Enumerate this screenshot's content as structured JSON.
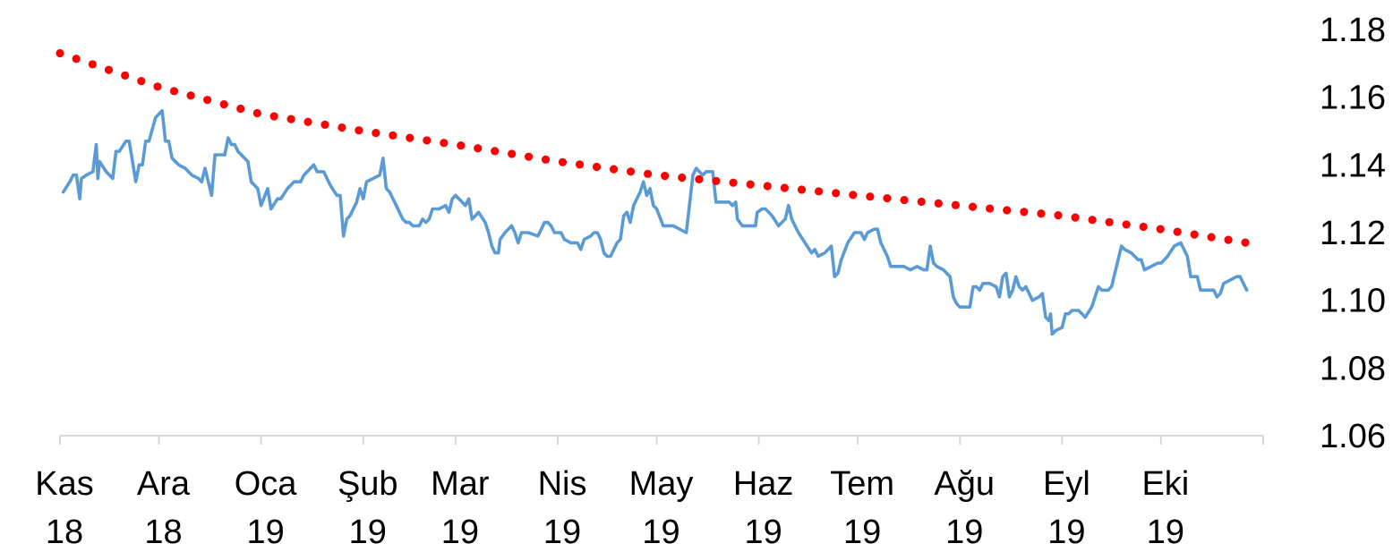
{
  "chart_data": {
    "type": "line",
    "title": "",
    "xlabel": "",
    "ylabel": "",
    "ylim": [
      1.06,
      1.18
    ],
    "yticks": [
      "1.06",
      "1.08",
      "1.10",
      "1.12",
      "1.14",
      "1.16",
      "1.18"
    ],
    "y_axis_side": "right",
    "grid": false,
    "legend": "none",
    "x_axis_months": [
      {
        "month": "Kas",
        "year": "18",
        "day": 0
      },
      {
        "month": "Ara",
        "year": "18",
        "day": 30
      },
      {
        "month": "Oca",
        "year": "19",
        "day": 61
      },
      {
        "month": "Şub",
        "year": "19",
        "day": 92
      },
      {
        "month": "Mar",
        "year": "19",
        "day": 120
      },
      {
        "month": "Nis",
        "year": "19",
        "day": 151
      },
      {
        "month": "May",
        "year": "19",
        "day": 181
      },
      {
        "month": "Haz",
        "year": "19",
        "day": 212
      },
      {
        "month": "Tem",
        "year": "19",
        "day": 242
      },
      {
        "month": "Ağu",
        "year": "19",
        "day": 273
      },
      {
        "month": "Eyl",
        "year": "19",
        "day": 304
      },
      {
        "month": "Eki",
        "year": "19",
        "day": 334
      }
    ],
    "x_end_day": 365,
    "series": [
      {
        "style": "solid",
        "color": "#5b9bd5",
        "points": [
          [
            1,
            1.132
          ],
          [
            3,
            1.135
          ],
          [
            4,
            1.137
          ],
          [
            5,
            1.137
          ],
          [
            6,
            1.13
          ],
          [
            6.5,
            1.136
          ],
          [
            8,
            1.137
          ],
          [
            10,
            1.138
          ],
          [
            11,
            1.146
          ],
          [
            11.5,
            1.136
          ],
          [
            12,
            1.141
          ],
          [
            14,
            1.138
          ],
          [
            16,
            1.136
          ],
          [
            17,
            1.144
          ],
          [
            18,
            1.144
          ],
          [
            20,
            1.147
          ],
          [
            21,
            1.147
          ],
          [
            23,
            1.135
          ],
          [
            24,
            1.14
          ],
          [
            25,
            1.14
          ],
          [
            26,
            1.147
          ],
          [
            27,
            1.147
          ],
          [
            29,
            1.154
          ],
          [
            31,
            1.156
          ],
          [
            32,
            1.147
          ],
          [
            33,
            1.147
          ],
          [
            34,
            1.142
          ],
          [
            36,
            1.14
          ],
          [
            38,
            1.139
          ],
          [
            40,
            1.137
          ],
          [
            42,
            1.136
          ],
          [
            43,
            1.135
          ],
          [
            44,
            1.139
          ],
          [
            46,
            1.131
          ],
          [
            47,
            1.143
          ],
          [
            48,
            1.143
          ],
          [
            50,
            1.143
          ],
          [
            51,
            1.148
          ],
          [
            52,
            1.146
          ],
          [
            53,
            1.146
          ],
          [
            54,
            1.144
          ],
          [
            56,
            1.142
          ],
          [
            57,
            1.141
          ],
          [
            58,
            1.135
          ],
          [
            59,
            1.134
          ],
          [
            60,
            1.133
          ],
          [
            61,
            1.128
          ],
          [
            63,
            1.133
          ],
          [
            64,
            1.127
          ],
          [
            66,
            1.13
          ],
          [
            67,
            1.13
          ],
          [
            69,
            1.133
          ],
          [
            71,
            1.135
          ],
          [
            73,
            1.135
          ],
          [
            74,
            1.137
          ],
          [
            76,
            1.139
          ],
          [
            77,
            1.14
          ],
          [
            78,
            1.138
          ],
          [
            80,
            1.138
          ],
          [
            82,
            1.134
          ],
          [
            84,
            1.131
          ],
          [
            85,
            1.131
          ],
          [
            86,
            1.119
          ],
          [
            87,
            1.124
          ],
          [
            88,
            1.125
          ],
          [
            90,
            1.129
          ],
          [
            91,
            1.133
          ],
          [
            92,
            1.13
          ],
          [
            93,
            1.135
          ],
          [
            95,
            1.136
          ],
          [
            97,
            1.137
          ],
          [
            98,
            1.142
          ],
          [
            99,
            1.133
          ],
          [
            100,
            1.132
          ],
          [
            102,
            1.128
          ],
          [
            104,
            1.124
          ],
          [
            105,
            1.123
          ],
          [
            106,
            1.123
          ],
          [
            107,
            1.122
          ],
          [
            109,
            1.122
          ],
          [
            110,
            1.124
          ],
          [
            111,
            1.123
          ],
          [
            112,
            1.124
          ],
          [
            113,
            1.127
          ],
          [
            115,
            1.127
          ],
          [
            117,
            1.128
          ],
          [
            118,
            1.126
          ],
          [
            119,
            1.13
          ],
          [
            120,
            1.131
          ],
          [
            122,
            1.129
          ],
          [
            123,
            1.128
          ],
          [
            124,
            1.13
          ],
          [
            125,
            1.124
          ],
          [
            126,
            1.125
          ],
          [
            127,
            1.126
          ],
          [
            129,
            1.123
          ],
          [
            130,
            1.12
          ],
          [
            131,
            1.116
          ],
          [
            132,
            1.114
          ],
          [
            133,
            1.114
          ],
          [
            133.5,
            1.118
          ],
          [
            135,
            1.12
          ],
          [
            137,
            1.122
          ],
          [
            138,
            1.12
          ],
          [
            139,
            1.117
          ],
          [
            140,
            1.12
          ],
          [
            142,
            1.12
          ],
          [
            145,
            1.119
          ],
          [
            147,
            1.123
          ],
          [
            148,
            1.123
          ],
          [
            149,
            1.122
          ],
          [
            150,
            1.12
          ],
          [
            152,
            1.12
          ],
          [
            153,
            1.118
          ],
          [
            155,
            1.117
          ],
          [
            157,
            1.117
          ],
          [
            158,
            1.115
          ],
          [
            159,
            1.118
          ],
          [
            161,
            1.119
          ],
          [
            162,
            1.12
          ],
          [
            163,
            1.12
          ],
          [
            164,
            1.118
          ],
          [
            165,
            1.114
          ],
          [
            166,
            1.113
          ],
          [
            167,
            1.113
          ],
          [
            169,
            1.117
          ],
          [
            170,
            1.118
          ],
          [
            171,
            1.125
          ],
          [
            172,
            1.126
          ],
          [
            173,
            1.123
          ],
          [
            174,
            1.128
          ],
          [
            176,
            1.132
          ],
          [
            177,
            1.135
          ],
          [
            178,
            1.131
          ],
          [
            179,
            1.133
          ],
          [
            180,
            1.128
          ],
          [
            181,
            1.127
          ],
          [
            183,
            1.122
          ],
          [
            184,
            1.122
          ],
          [
            186,
            1.122
          ],
          [
            188,
            1.121
          ],
          [
            190,
            1.12
          ],
          [
            192,
            1.137
          ],
          [
            193,
            1.139
          ],
          [
            195,
            1.137
          ],
          [
            196,
            1.138
          ],
          [
            198,
            1.138
          ],
          [
            199,
            1.129
          ],
          [
            201,
            1.129
          ],
          [
            203,
            1.129
          ],
          [
            204,
            1.128
          ],
          [
            205,
            1.129
          ],
          [
            205.5,
            1.124
          ],
          [
            207,
            1.122
          ],
          [
            209,
            1.122
          ],
          [
            211,
            1.122
          ],
          [
            211.5,
            1.126
          ],
          [
            213,
            1.127
          ],
          [
            214,
            1.127
          ],
          [
            216,
            1.125
          ],
          [
            218,
            1.122
          ],
          [
            220,
            1.124
          ],
          [
            221,
            1.128
          ],
          [
            222,
            1.124
          ],
          [
            224,
            1.12
          ],
          [
            226,
            1.117
          ],
          [
            228,
            1.114
          ],
          [
            229,
            1.115
          ],
          [
            230,
            1.113
          ],
          [
            232,
            1.114
          ],
          [
            234,
            1.116
          ],
          [
            235,
            1.107
          ],
          [
            236,
            1.108
          ],
          [
            237,
            1.112
          ],
          [
            239,
            1.117
          ],
          [
            241,
            1.12
          ],
          [
            243,
            1.12
          ],
          [
            244,
            1.118
          ],
          [
            245,
            1.12
          ],
          [
            247,
            1.121
          ],
          [
            248,
            1.121
          ],
          [
            249,
            1.117
          ],
          [
            251,
            1.113
          ],
          [
            252,
            1.11
          ],
          [
            254,
            1.11
          ],
          [
            256,
            1.11
          ],
          [
            258,
            1.109
          ],
          [
            260,
            1.11
          ],
          [
            262,
            1.109
          ],
          [
            263,
            1.109
          ],
          [
            264,
            1.116
          ],
          [
            265,
            1.111
          ],
          [
            266,
            1.11
          ],
          [
            268,
            1.109
          ],
          [
            270,
            1.107
          ],
          [
            271,
            1.101
          ],
          [
            272,
            1.099
          ],
          [
            273,
            1.098
          ],
          [
            275,
            1.098
          ],
          [
            276,
            1.098
          ],
          [
            277,
            1.104
          ],
          [
            278,
            1.104
          ],
          [
            279,
            1.103
          ],
          [
            280,
            1.105
          ],
          [
            282,
            1.105
          ],
          [
            284,
            1.104
          ],
          [
            285,
            1.101
          ],
          [
            286,
            1.107
          ],
          [
            287,
            1.108
          ],
          [
            288,
            1.101
          ],
          [
            289,
            1.103
          ],
          [
            290,
            1.107
          ],
          [
            291,
            1.104
          ],
          [
            292,
            1.103
          ],
          [
            293,
            1.104
          ],
          [
            294,
            1.102
          ],
          [
            295,
            1.1
          ],
          [
            297,
            1.101
          ],
          [
            298,
            1.102
          ],
          [
            299,
            1.095
          ],
          [
            300,
            1.094
          ],
          [
            300.5,
            1.096
          ],
          [
            301,
            1.09
          ],
          [
            302,
            1.091
          ],
          [
            304,
            1.092
          ],
          [
            305,
            1.096
          ],
          [
            306,
            1.096
          ],
          [
            307,
            1.097
          ],
          [
            308,
            1.097
          ],
          [
            309,
            1.097
          ],
          [
            310,
            1.096
          ],
          [
            311,
            1.095
          ],
          [
            313,
            1.098
          ],
          [
            315,
            1.104
          ],
          [
            316,
            1.103
          ],
          [
            317,
            1.103
          ],
          [
            318,
            1.103
          ],
          [
            319,
            1.104
          ],
          [
            321,
            1.112
          ],
          [
            322,
            1.116
          ],
          [
            323,
            1.115
          ],
          [
            325,
            1.114
          ],
          [
            327,
            1.112
          ],
          [
            328,
            1.112
          ],
          [
            329,
            1.109
          ],
          [
            331,
            1.11
          ],
          [
            333,
            1.111
          ],
          [
            334,
            1.111
          ],
          [
            336,
            1.113
          ],
          [
            338,
            1.116
          ],
          [
            340,
            1.117
          ],
          [
            342,
            1.113
          ],
          [
            343,
            1.107
          ],
          [
            344,
            1.107
          ],
          [
            345,
            1.107
          ],
          [
            346,
            1.103
          ],
          [
            348,
            1.103
          ],
          [
            350,
            1.103
          ],
          [
            351,
            1.101
          ],
          [
            352,
            1.102
          ],
          [
            353,
            1.105
          ],
          [
            355,
            1.106
          ],
          [
            357,
            1.107
          ],
          [
            358,
            1.107
          ],
          [
            359,
            1.105
          ],
          [
            360,
            1.103
          ]
        ]
      },
      {
        "style": "dotted",
        "color": "#ff0000",
        "points": [
          [
            0,
            1.173
          ],
          [
            30,
            1.163
          ],
          [
            61,
            1.155
          ],
          [
            92,
            1.15
          ],
          [
            120,
            1.146
          ],
          [
            151,
            1.141
          ],
          [
            181,
            1.137
          ],
          [
            212,
            1.134
          ],
          [
            242,
            1.131
          ],
          [
            273,
            1.128
          ],
          [
            304,
            1.125
          ],
          [
            334,
            1.121
          ],
          [
            360,
            1.117
          ]
        ]
      }
    ]
  }
}
